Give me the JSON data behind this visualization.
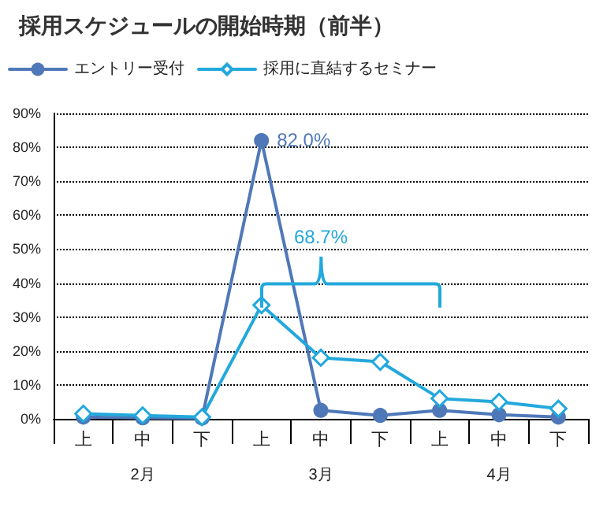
{
  "chart_data": {
    "type": "line",
    "title": "採用スケジュールの開始時期（前半）",
    "categories": [
      "上",
      "中",
      "下",
      "上",
      "中",
      "下",
      "上",
      "中",
      "下"
    ],
    "series": [
      {
        "name": "エントリー受付",
        "color": "#4f78b8",
        "marker": "circle",
        "values": [
          0.5,
          0.3,
          0.2,
          82.0,
          2.5,
          1.0,
          2.5,
          1.2,
          0.5
        ],
        "value_labels": [
          null,
          null,
          null,
          "82.0%",
          null,
          null,
          null,
          null,
          null
        ]
      },
      {
        "name": "採用に直結するセミナー",
        "color": "#22a8dc",
        "marker": "diamond",
        "values": [
          1.5,
          1.0,
          0.5,
          33.5,
          18,
          16.8,
          6,
          5,
          3
        ]
      }
    ],
    "ylim": [
      0,
      90
    ],
    "yticks": [
      {
        "value": 0,
        "label": "0%"
      },
      {
        "value": 10,
        "label": "10%"
      },
      {
        "value": 20,
        "label": "20%"
      },
      {
        "value": 30,
        "label": "30%"
      },
      {
        "value": 40,
        "label": "40%"
      },
      {
        "value": 50,
        "label": "50%"
      },
      {
        "value": 60,
        "label": "60%"
      },
      {
        "value": 70,
        "label": "70%"
      },
      {
        "value": 80,
        "label": "80%"
      },
      {
        "value": 90,
        "label": "90%"
      }
    ],
    "grid": "y",
    "legend": "top",
    "line_style": "solid",
    "annotations": [
      "2月",
      "3月",
      "4月",
      "68.7%"
    ]
  }
}
